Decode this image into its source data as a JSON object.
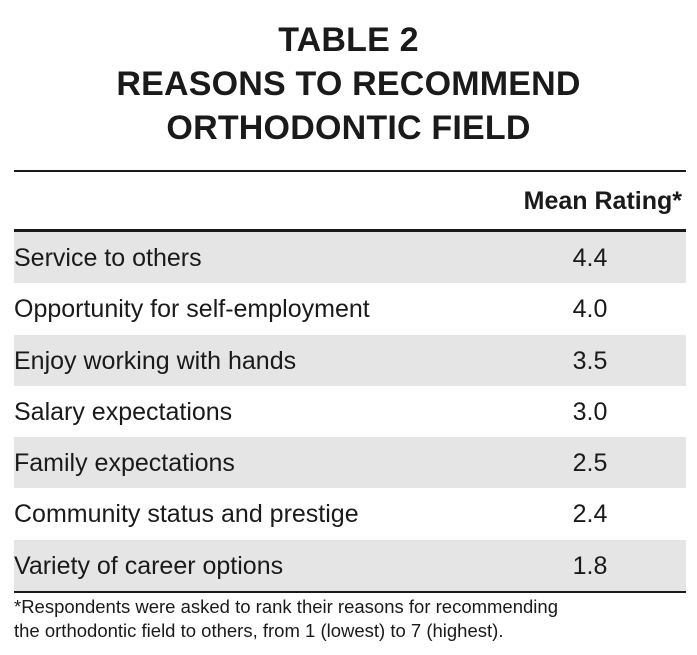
{
  "title": {
    "line1": "TABLE 2",
    "line2": "REASONS TO RECOMMEND",
    "line3": "ORTHODONTIC FIELD"
  },
  "table": {
    "column_header": "Mean Rating*",
    "rows": [
      {
        "reason": "Service to others",
        "rating": "4.4"
      },
      {
        "reason": "Opportunity for self-employment",
        "rating": "4.0"
      },
      {
        "reason": "Enjoy working with hands",
        "rating": "3.5"
      },
      {
        "reason": "Salary expectations",
        "rating": "3.0"
      },
      {
        "reason": "Family expectations",
        "rating": "2.5"
      },
      {
        "reason": "Community status and prestige",
        "rating": "2.4"
      },
      {
        "reason": "Variety of career options",
        "rating": "1.8"
      }
    ]
  },
  "footnote": {
    "line1": "*Respondents were asked to rank their reasons for recommending",
    "line2": "the orthodontic field to others, from 1 (lowest) to 7 (highest)."
  }
}
